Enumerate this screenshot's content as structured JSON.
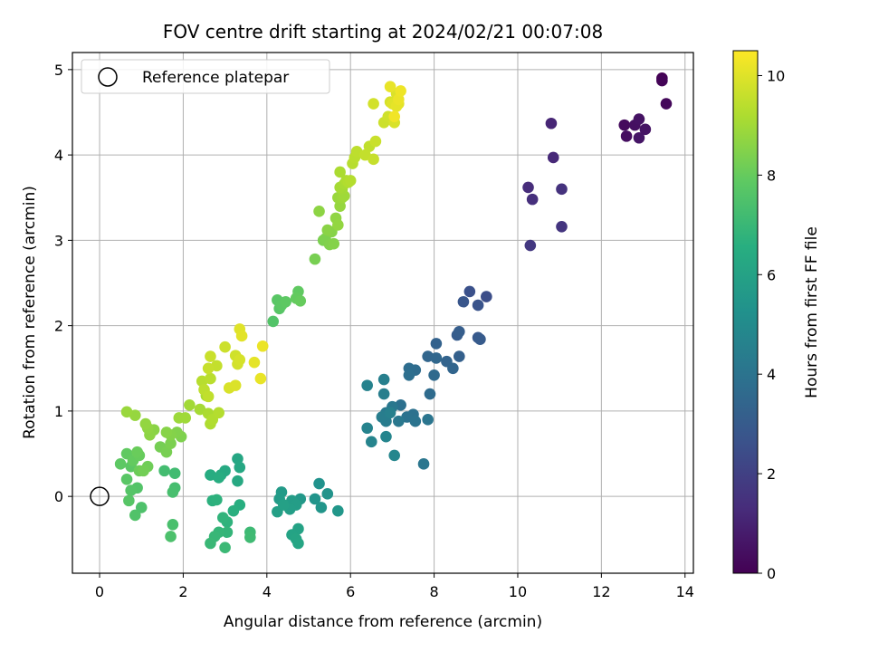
{
  "chart_data": {
    "type": "scatter",
    "title": "FOV centre drift starting at 2024/02/21 00:07:08",
    "xlabel": "Angular distance from reference (arcmin)",
    "ylabel": "Rotation from reference (arcmin)",
    "xlim": [
      -0.65,
      14.2
    ],
    "ylim": [
      -0.9,
      5.2
    ],
    "xticks": [
      0,
      2,
      4,
      6,
      8,
      10,
      12,
      14
    ],
    "yticks": [
      0,
      1,
      2,
      3,
      4,
      5
    ],
    "grid": true,
    "legend": {
      "placement": "top-left",
      "entries": [
        "Reference platepar"
      ]
    },
    "reference_point": {
      "x": 0,
      "y": 0
    },
    "colorbar": {
      "label": "Hours from first FF file",
      "range": [
        0,
        10.5
      ],
      "ticks": [
        0,
        2,
        4,
        6,
        8,
        10
      ],
      "colormap": "viridis"
    },
    "series": [
      {
        "values": [
          [
            13.45,
            4.9,
            0.0
          ],
          [
            13.45,
            4.87,
            0.1
          ],
          [
            13.55,
            4.6,
            0.2
          ],
          [
            12.55,
            4.35,
            0.3
          ],
          [
            12.6,
            4.22,
            0.4
          ],
          [
            12.8,
            4.35,
            0.45
          ],
          [
            12.9,
            4.42,
            0.5
          ],
          [
            13.05,
            4.3,
            0.55
          ],
          [
            12.9,
            4.2,
            0.6
          ],
          [
            10.8,
            4.37,
            1.1
          ],
          [
            10.85,
            3.97,
            1.2
          ],
          [
            10.25,
            3.62,
            1.3
          ],
          [
            10.35,
            3.48,
            1.4
          ],
          [
            11.05,
            3.6,
            1.5
          ],
          [
            11.05,
            3.16,
            1.6
          ],
          [
            10.3,
            2.94,
            1.7
          ],
          [
            9.25,
            2.34,
            2.5
          ],
          [
            8.85,
            2.4,
            2.6
          ],
          [
            9.05,
            2.24,
            2.7
          ],
          [
            8.7,
            2.28,
            2.8
          ],
          [
            9.05,
            1.86,
            2.9
          ],
          [
            9.1,
            1.84,
            3.0
          ],
          [
            8.55,
            1.89,
            3.05
          ],
          [
            8.6,
            1.93,
            3.1
          ],
          [
            8.6,
            1.64,
            3.2
          ],
          [
            8.05,
            1.79,
            3.3
          ],
          [
            8.3,
            1.58,
            3.35
          ],
          [
            8.45,
            1.5,
            3.4
          ],
          [
            7.85,
            1.64,
            3.45
          ],
          [
            8.05,
            1.62,
            3.5
          ],
          [
            8.0,
            1.42,
            3.6
          ],
          [
            7.9,
            1.2,
            3.65
          ],
          [
            7.55,
            1.48,
            3.7
          ],
          [
            7.4,
            1.5,
            3.75
          ],
          [
            7.4,
            1.42,
            3.8
          ],
          [
            7.2,
            1.07,
            3.85
          ],
          [
            7.5,
            0.96,
            3.9
          ],
          [
            7.35,
            0.93,
            3.95
          ],
          [
            7.55,
            0.88,
            4.0
          ],
          [
            7.85,
            0.9,
            4.05
          ],
          [
            7.75,
            0.38,
            4.1
          ],
          [
            7.0,
            1.05,
            4.15
          ],
          [
            7.15,
            0.88,
            4.2
          ],
          [
            6.85,
            0.98,
            4.25
          ],
          [
            6.8,
            0.92,
            4.3
          ],
          [
            6.85,
            0.88,
            4.35
          ],
          [
            6.75,
            0.93,
            4.4
          ],
          [
            6.8,
            1.2,
            4.45
          ],
          [
            6.8,
            1.37,
            4.5
          ],
          [
            6.95,
            0.98,
            4.55
          ],
          [
            6.4,
            1.3,
            4.6
          ],
          [
            6.4,
            0.8,
            4.65
          ],
          [
            6.5,
            0.64,
            4.7
          ],
          [
            6.85,
            0.7,
            4.75
          ],
          [
            7.05,
            0.48,
            4.8
          ],
          [
            5.25,
            0.15,
            5.3
          ],
          [
            5.45,
            0.03,
            5.35
          ],
          [
            5.15,
            -0.03,
            5.4
          ],
          [
            5.3,
            -0.13,
            5.45
          ],
          [
            5.7,
            -0.17,
            5.5
          ],
          [
            4.8,
            -0.03,
            5.55
          ],
          [
            4.6,
            -0.05,
            5.6
          ],
          [
            4.35,
            0.05,
            5.65
          ],
          [
            4.3,
            -0.03,
            5.7
          ],
          [
            4.6,
            -0.05,
            5.75
          ],
          [
            4.7,
            -0.1,
            5.8
          ],
          [
            4.55,
            -0.15,
            5.85
          ],
          [
            4.25,
            -0.18,
            5.9
          ],
          [
            4.4,
            -0.1,
            5.95
          ],
          [
            4.75,
            -0.38,
            6.0
          ],
          [
            4.6,
            -0.45,
            6.05
          ],
          [
            4.7,
            -0.5,
            6.1
          ],
          [
            4.75,
            -0.55,
            6.15
          ],
          [
            3.3,
            0.44,
            6.2
          ],
          [
            3.35,
            0.34,
            6.25
          ],
          [
            3.3,
            0.18,
            6.3
          ],
          [
            3.0,
            0.3,
            6.35
          ],
          [
            2.9,
            0.25,
            6.4
          ],
          [
            2.65,
            0.25,
            6.45
          ],
          [
            2.85,
            0.22,
            6.5
          ],
          [
            3.35,
            -0.1,
            6.55
          ],
          [
            3.2,
            -0.17,
            6.6
          ],
          [
            2.7,
            -0.05,
            6.65
          ],
          [
            2.8,
            -0.04,
            6.7
          ],
          [
            3.05,
            -0.3,
            6.75
          ],
          [
            2.95,
            -0.25,
            6.8
          ],
          [
            3.05,
            -0.42,
            6.85
          ],
          [
            2.85,
            -0.42,
            6.9
          ],
          [
            2.75,
            -0.47,
            6.95
          ],
          [
            2.65,
            -0.55,
            7.0
          ],
          [
            3.0,
            -0.6,
            7.05
          ],
          [
            3.6,
            -0.42,
            7.1
          ],
          [
            3.6,
            -0.48,
            7.15
          ],
          [
            1.8,
            0.27,
            7.2
          ],
          [
            1.55,
            0.3,
            7.25
          ],
          [
            1.8,
            0.1,
            7.3
          ],
          [
            1.75,
            0.05,
            7.35
          ],
          [
            1.75,
            -0.33,
            7.4
          ],
          [
            1.7,
            -0.47,
            7.45
          ],
          [
            1.0,
            -0.13,
            7.5
          ],
          [
            0.85,
            -0.22,
            7.55
          ],
          [
            0.9,
            0.1,
            7.6
          ],
          [
            0.75,
            0.07,
            7.65
          ],
          [
            0.7,
            -0.05,
            7.7
          ],
          [
            0.65,
            0.2,
            7.75
          ],
          [
            0.75,
            0.35,
            7.8
          ],
          [
            0.5,
            0.38,
            7.85
          ],
          [
            0.65,
            0.5,
            7.9
          ],
          [
            0.8,
            0.42,
            7.95
          ],
          [
            0.95,
            0.48,
            8.0
          ],
          [
            0.9,
            0.52,
            8.05
          ],
          [
            0.95,
            0.3,
            8.1
          ],
          [
            1.15,
            0.35,
            8.15
          ],
          [
            1.05,
            0.3,
            8.2
          ],
          [
            1.45,
            0.58,
            8.25
          ],
          [
            1.6,
            0.52,
            8.3
          ],
          [
            1.7,
            0.62,
            8.35
          ],
          [
            1.95,
            0.7,
            8.4
          ],
          [
            1.85,
            0.75,
            8.45
          ],
          [
            1.7,
            0.72,
            8.5
          ],
          [
            1.6,
            0.75,
            8.55
          ],
          [
            1.3,
            0.78,
            8.6
          ],
          [
            1.2,
            0.72,
            8.65
          ],
          [
            1.15,
            0.8,
            8.7
          ],
          [
            1.1,
            0.85,
            8.75
          ],
          [
            0.85,
            0.95,
            8.8
          ],
          [
            0.65,
            0.99,
            8.85
          ],
          [
            1.9,
            0.92,
            8.9
          ],
          [
            2.05,
            0.92,
            8.95
          ],
          [
            2.15,
            1.07,
            9.0
          ],
          [
            2.4,
            1.02,
            9.05
          ],
          [
            2.55,
            1.18,
            9.1
          ],
          [
            2.6,
            0.97,
            9.15
          ],
          [
            2.65,
            0.85,
            9.2
          ],
          [
            2.7,
            0.9,
            9.25
          ],
          [
            2.85,
            0.98,
            9.3
          ],
          [
            2.45,
            1.35,
            9.35
          ],
          [
            2.65,
            1.38,
            9.4
          ],
          [
            2.5,
            1.25,
            9.45
          ],
          [
            2.6,
            1.17,
            9.5
          ],
          [
            2.8,
            1.53,
            9.55
          ],
          [
            2.6,
            1.5,
            9.6
          ],
          [
            2.65,
            1.64,
            9.65
          ],
          [
            3.0,
            1.75,
            9.7
          ],
          [
            3.25,
            1.65,
            9.75
          ],
          [
            3.3,
            1.55,
            9.8
          ],
          [
            3.35,
            1.6,
            9.85
          ],
          [
            3.1,
            1.27,
            9.9
          ],
          [
            3.25,
            1.3,
            9.95
          ],
          [
            3.35,
            1.96,
            10.0
          ],
          [
            3.4,
            1.88,
            10.05
          ],
          [
            3.7,
            1.57,
            10.1
          ],
          [
            3.85,
            1.38,
            10.15
          ],
          [
            3.9,
            1.76,
            10.2
          ],
          [
            4.15,
            2.05,
            7.6
          ],
          [
            4.3,
            2.2,
            7.7
          ],
          [
            4.25,
            2.3,
            7.75
          ],
          [
            4.35,
            2.24,
            7.8
          ],
          [
            4.45,
            2.28,
            7.85
          ],
          [
            4.75,
            2.4,
            7.9
          ],
          [
            4.7,
            2.32,
            7.95
          ],
          [
            4.8,
            2.29,
            8.0
          ],
          [
            5.15,
            2.78,
            8.3
          ],
          [
            5.35,
            3.0,
            8.35
          ],
          [
            5.4,
            3.02,
            8.4
          ],
          [
            5.5,
            2.95,
            8.45
          ],
          [
            5.6,
            2.96,
            8.5
          ],
          [
            5.55,
            3.1,
            8.55
          ],
          [
            5.45,
            3.12,
            8.6
          ],
          [
            5.25,
            3.34,
            8.65
          ],
          [
            5.65,
            3.26,
            8.7
          ],
          [
            5.7,
            3.18,
            8.75
          ],
          [
            5.75,
            3.4,
            8.8
          ],
          [
            5.7,
            3.5,
            8.85
          ],
          [
            5.8,
            3.5,
            8.9
          ],
          [
            5.85,
            3.52,
            8.95
          ],
          [
            5.8,
            3.6,
            9.0
          ],
          [
            5.75,
            3.62,
            9.05
          ],
          [
            5.85,
            3.66,
            9.1
          ],
          [
            5.75,
            3.8,
            9.15
          ],
          [
            5.9,
            3.7,
            9.2
          ],
          [
            5.95,
            3.68,
            9.25
          ],
          [
            6.0,
            3.7,
            9.3
          ],
          [
            6.05,
            3.9,
            9.35
          ],
          [
            6.1,
            3.97,
            9.4
          ],
          [
            6.15,
            4.04,
            9.45
          ],
          [
            6.45,
            4.1,
            9.5
          ],
          [
            6.35,
            4.0,
            9.55
          ],
          [
            6.55,
            3.95,
            9.6
          ],
          [
            6.6,
            4.16,
            9.65
          ],
          [
            6.8,
            4.38,
            9.7
          ],
          [
            6.9,
            4.45,
            9.75
          ],
          [
            6.55,
            4.6,
            9.8
          ],
          [
            6.95,
            4.62,
            9.85
          ],
          [
            7.05,
            4.38,
            9.9
          ],
          [
            7.1,
            4.72,
            9.95
          ],
          [
            7.0,
            4.6,
            10.0
          ],
          [
            7.15,
            4.6,
            10.05
          ],
          [
            7.1,
            4.57,
            10.1
          ],
          [
            6.95,
            4.8,
            10.15
          ],
          [
            7.15,
            4.65,
            10.2
          ],
          [
            7.2,
            4.75,
            10.25
          ],
          [
            7.05,
            4.45,
            10.3
          ]
        ]
      }
    ]
  }
}
